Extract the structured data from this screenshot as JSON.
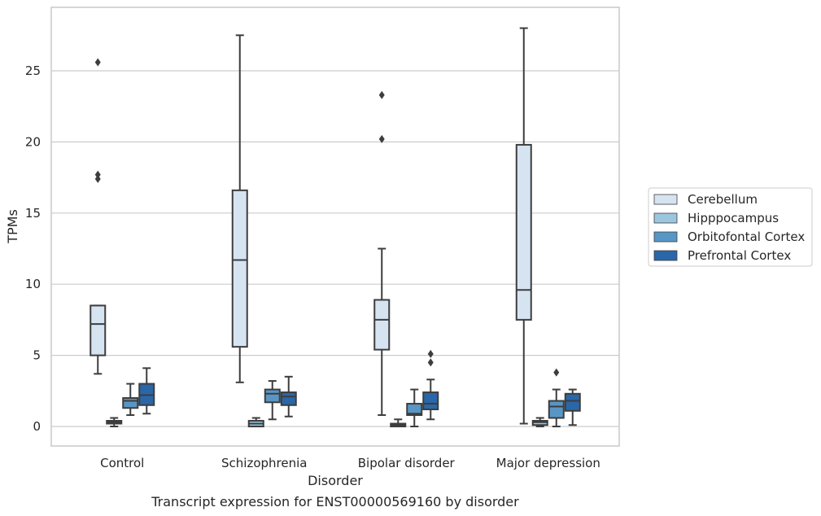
{
  "chart_data": {
    "type": "box",
    "title": "",
    "caption": "Transcript expression for ENST00000569160 by disorder",
    "xlabel": "Disorder",
    "ylabel": "TPMs",
    "ylim": [
      -1.3,
      29.0
    ],
    "yticks": [
      0,
      5,
      10,
      15,
      20,
      25
    ],
    "grid": "horizontal",
    "legend_position": "right",
    "categories": [
      "Control",
      "Schizophrenia",
      "Bipolar disorder",
      "Major depression"
    ],
    "series": [
      {
        "name": "Cerebellum",
        "color": "#d6e4f2",
        "boxes": [
          {
            "whisker_low": 3.7,
            "q1": 5.0,
            "median": 7.2,
            "q3": 8.5,
            "whisker_high": 8.5,
            "outliers": [
              25.6,
              17.7,
              17.4
            ]
          },
          {
            "whisker_low": 3.1,
            "q1": 5.6,
            "median": 11.7,
            "q3": 16.6,
            "whisker_high": 27.5,
            "outliers": []
          },
          {
            "whisker_low": 0.8,
            "q1": 5.4,
            "median": 7.5,
            "q3": 8.9,
            "whisker_high": 12.5,
            "outliers": [
              23.3,
              20.2
            ]
          },
          {
            "whisker_low": 0.2,
            "q1": 7.5,
            "median": 9.6,
            "q3": 19.8,
            "whisker_high": 28.0,
            "outliers": []
          }
        ]
      },
      {
        "name": "Hipppocampus",
        "color": "#9cc6de",
        "boxes": [
          {
            "whisker_low": 0.0,
            "q1": 0.2,
            "median": 0.3,
            "q3": 0.4,
            "whisker_high": 0.6,
            "outliers": []
          },
          {
            "whisker_low": 0.0,
            "q1": 0.0,
            "median": 0.2,
            "q3": 0.4,
            "whisker_high": 0.6,
            "outliers": []
          },
          {
            "whisker_low": 0.0,
            "q1": 0.0,
            "median": 0.1,
            "q3": 0.2,
            "whisker_high": 0.5,
            "outliers": []
          },
          {
            "whisker_low": 0.0,
            "q1": 0.1,
            "median": 0.3,
            "q3": 0.4,
            "whisker_high": 0.6,
            "outliers": []
          }
        ]
      },
      {
        "name": "Orbitofontal Cortex",
        "color": "#5896c6",
        "boxes": [
          {
            "whisker_low": 0.8,
            "q1": 1.3,
            "median": 1.8,
            "q3": 2.0,
            "whisker_high": 3.0,
            "outliers": []
          },
          {
            "whisker_low": 0.5,
            "q1": 1.7,
            "median": 2.3,
            "q3": 2.6,
            "whisker_high": 3.2,
            "outliers": []
          },
          {
            "whisker_low": 0.0,
            "q1": 0.8,
            "median": 0.9,
            "q3": 1.6,
            "whisker_high": 2.6,
            "outliers": []
          },
          {
            "whisker_low": 0.0,
            "q1": 0.6,
            "median": 1.4,
            "q3": 1.8,
            "whisker_high": 2.6,
            "outliers": [
              3.8
            ]
          }
        ]
      },
      {
        "name": "Prefrontal Cortex",
        "color": "#2a67a9",
        "boxes": [
          {
            "whisker_low": 0.9,
            "q1": 1.5,
            "median": 2.2,
            "q3": 3.0,
            "whisker_high": 4.1,
            "outliers": []
          },
          {
            "whisker_low": 0.7,
            "q1": 1.5,
            "median": 2.1,
            "q3": 2.4,
            "whisker_high": 3.5,
            "outliers": []
          },
          {
            "whisker_low": 0.5,
            "q1": 1.2,
            "median": 1.6,
            "q3": 2.4,
            "whisker_high": 3.3,
            "outliers": [
              5.1,
              4.5
            ]
          },
          {
            "whisker_low": 0.1,
            "q1": 1.1,
            "median": 1.8,
            "q3": 2.3,
            "whisker_high": 2.6,
            "outliers": []
          }
        ]
      }
    ]
  }
}
